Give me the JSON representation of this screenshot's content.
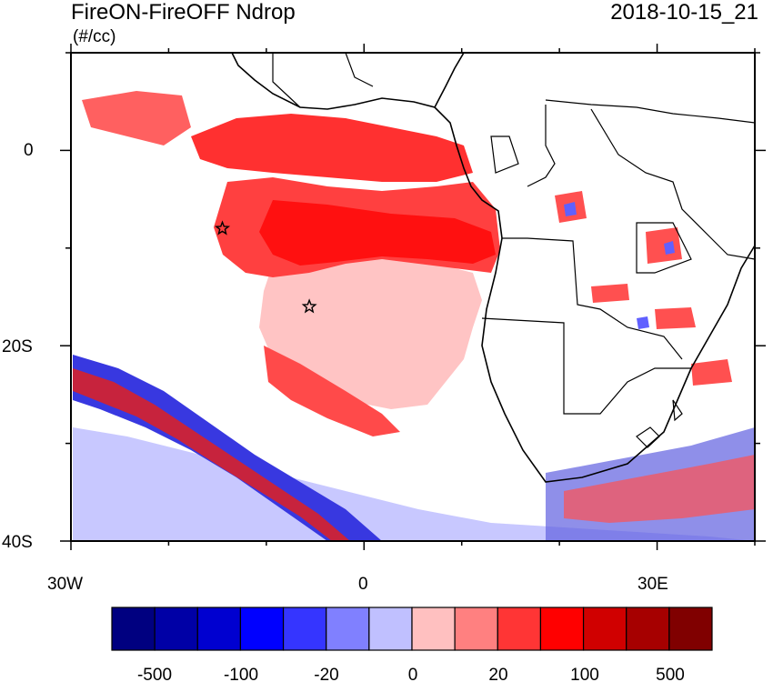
{
  "title": "FireON-FireOFF Ndrop",
  "units": "(#/cc)",
  "datetime": "2018-10-15_21",
  "axes": {
    "lon_range": [
      -30,
      40
    ],
    "lat_range": [
      -40,
      10
    ],
    "y_ticks": [
      {
        "value": 0,
        "label": "0"
      },
      {
        "value": -20,
        "label": "20S"
      },
      {
        "value": -40,
        "label": "40S"
      }
    ],
    "x_ticks": [
      {
        "value": -30,
        "label": "30W"
      },
      {
        "value": 0,
        "label": "0"
      },
      {
        "value": 30,
        "label": "30E"
      }
    ]
  },
  "markers": [
    {
      "name": "star",
      "lon": -14.5,
      "lat": -8
    },
    {
      "name": "star",
      "lon": -5.6,
      "lat": -16
    }
  ],
  "colorbar": {
    "colors": [
      "#000080",
      "#0000a6",
      "#0000d0",
      "#0000ff",
      "#3535ff",
      "#8080ff",
      "#c0c0ff",
      "#ffc0c0",
      "#ff8080",
      "#ff3535",
      "#ff0000",
      "#d00000",
      "#a60000",
      "#800000"
    ],
    "labels": [
      "-500",
      "-100",
      "-20",
      "0",
      "20",
      "100",
      "500"
    ]
  }
}
